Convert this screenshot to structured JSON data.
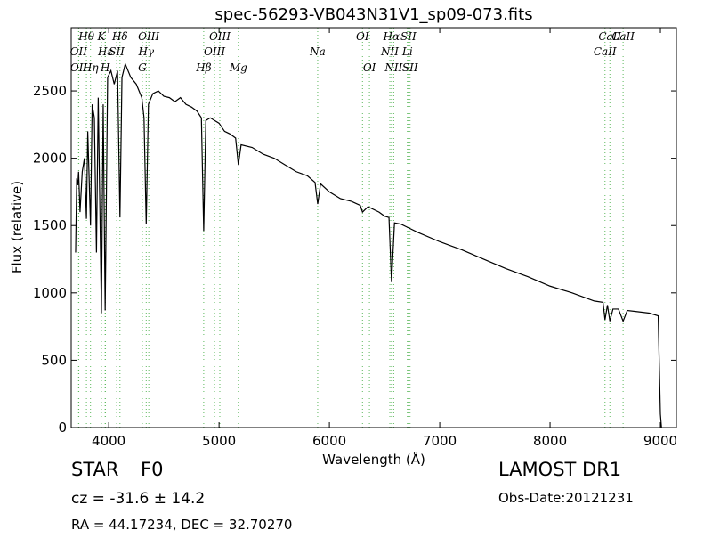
{
  "chart_data": {
    "type": "line",
    "title": "spec-56293-VB043N31V1_sp09-073.fits",
    "x_label": "Wavelength (Å)",
    "y_label": "Flux (relative)",
    "color": "#000000",
    "x": [
      3700,
      3710,
      3720,
      3727,
      3740,
      3760,
      3780,
      3798,
      3810,
      3835,
      3850,
      3870,
      3889,
      3905,
      3934,
      3950,
      3968,
      3990,
      4020,
      4050,
      4080,
      4102,
      4120,
      4150,
      4200,
      4250,
      4300,
      4320,
      4340,
      4360,
      4400,
      4450,
      4500,
      4550,
      4600,
      4650,
      4700,
      4750,
      4800,
      4840,
      4861,
      4880,
      4920,
      5000,
      5050,
      5100,
      5150,
      5175,
      5200,
      5300,
      5400,
      5500,
      5600,
      5700,
      5800,
      5870,
      5894,
      5920,
      6000,
      6100,
      6200,
      6280,
      6300,
      6350,
      6450,
      6500,
      6540,
      6563,
      6590,
      6650,
      6700,
      6800,
      7000,
      7200,
      7400,
      7600,
      7800,
      8000,
      8200,
      8400,
      8480,
      8498,
      8520,
      8542,
      8570,
      8620,
      8662,
      8700,
      8800,
      8900,
      8980,
      9000,
      9010
    ],
    "values": [
      1300,
      1850,
      1800,
      1900,
      1600,
      1900,
      2000,
      1550,
      2200,
      1500,
      2400,
      2300,
      1300,
      2450,
      850,
      2400,
      870,
      2600,
      2650,
      2550,
      2650,
      1560,
      2600,
      2700,
      2600,
      2550,
      2450,
      2300,
      1510,
      2400,
      2480,
      2500,
      2460,
      2450,
      2420,
      2450,
      2400,
      2380,
      2350,
      2300,
      1460,
      2280,
      2300,
      2260,
      2200,
      2180,
      2150,
      1950,
      2100,
      2080,
      2030,
      2000,
      1950,
      1900,
      1870,
      1820,
      1660,
      1810,
      1750,
      1700,
      1680,
      1650,
      1600,
      1640,
      1600,
      1570,
      1560,
      1080,
      1520,
      1510,
      1490,
      1450,
      1380,
      1320,
      1250,
      1180,
      1120,
      1050,
      1000,
      940,
      930,
      800,
      910,
      790,
      880,
      880,
      790,
      870,
      860,
      850,
      830,
      100,
      0
    ],
    "xlim": [
      3660,
      9145
    ],
    "ylim": [
      0,
      2970
    ],
    "xticks": [
      4000,
      5000,
      6000,
      7000,
      8000,
      9000
    ],
    "yticks": [
      0,
      500,
      1000,
      1500,
      2000,
      2500
    ],
    "line_color": "#5cb85c",
    "lines": [
      {
        "wavelength": 3798,
        "label": "Hθ"
      },
      {
        "wavelength": 3727,
        "label": "OII"
      },
      {
        "wavelength": 3835,
        "label": "Hη"
      },
      {
        "wavelength": 3934,
        "label": "K"
      },
      {
        "wavelength": 3970,
        "label": "Hε"
      },
      {
        "wavelength": 3968,
        "label": "H"
      },
      {
        "wavelength": 4102,
        "label": "Hδ"
      },
      {
        "wavelength": 4072,
        "label": "SII"
      },
      {
        "wavelength": 3729,
        "label": "OII"
      },
      {
        "wavelength": 4363,
        "label": "OIII"
      },
      {
        "wavelength": 4340,
        "label": "Hγ"
      },
      {
        "wavelength": 4305,
        "label": "G"
      },
      {
        "wavelength": 5007,
        "label": "OIII"
      },
      {
        "wavelength": 4959,
        "label": "OIII"
      },
      {
        "wavelength": 4861,
        "label": "Hβ"
      },
      {
        "wavelength": 6300,
        "label": "OI"
      },
      {
        "wavelength": 5894,
        "label": "Na"
      },
      {
        "wavelength": 5175,
        "label": "Mg"
      },
      {
        "wavelength": 6563,
        "label": "Hα"
      },
      {
        "wavelength": 6548,
        "label": "NII"
      },
      {
        "wavelength": 6363,
        "label": "OI"
      },
      {
        "wavelength": 6716,
        "label": "SII"
      },
      {
        "wavelength": 6707,
        "label": "Li"
      },
      {
        "wavelength": 6583,
        "label": "NII"
      },
      {
        "wavelength": 8542,
        "label": "CaII"
      },
      {
        "wavelength": 8498,
        "label": "CaII"
      },
      {
        "wavelength": 6731,
        "label": "SII"
      },
      {
        "wavelength": 8662,
        "label": "CaII"
      }
    ]
  },
  "footer": {
    "object": "STAR",
    "subclass": "F0",
    "redshift": "cz = -31.6 ± 14.2",
    "coords": "RA = 44.17234, DEC = 32.70270",
    "survey": "LAMOST DR1",
    "obs_date": "Obs-Date:20121231"
  }
}
